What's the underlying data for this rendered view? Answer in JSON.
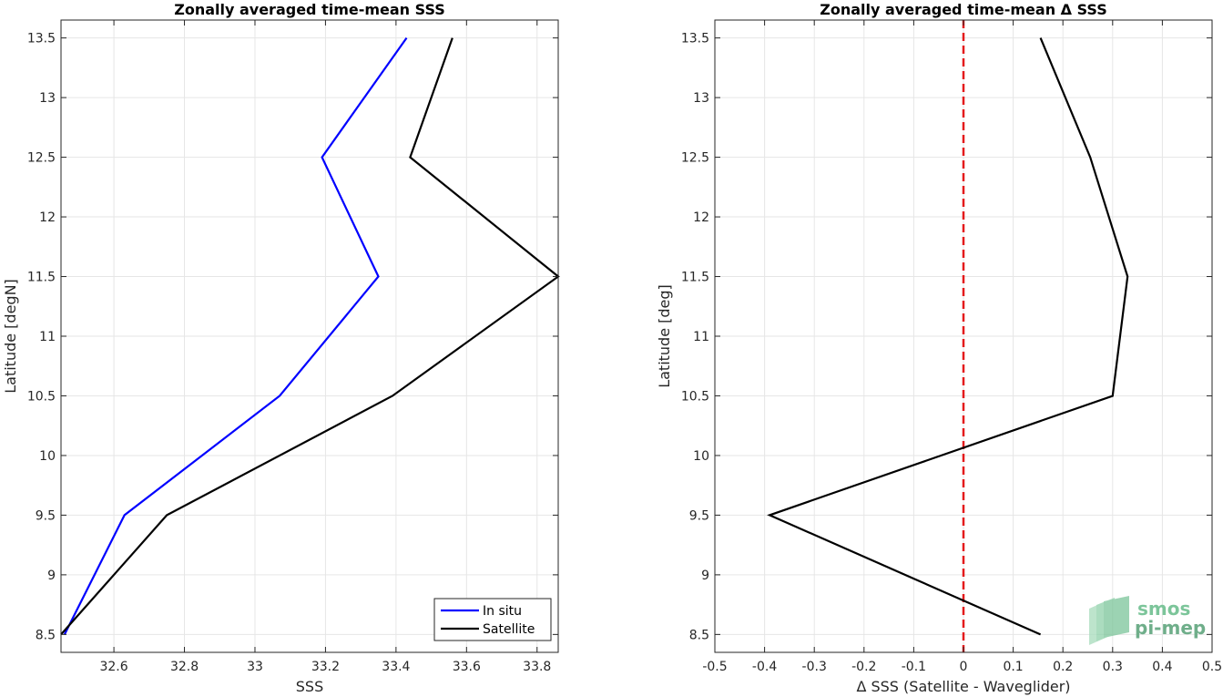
{
  "chart_data": [
    {
      "type": "line",
      "title": "Zonally averaged time-mean SSS",
      "xlabel": "SSS",
      "ylabel": "Latitude [degN]",
      "xlim": [
        32.45,
        33.86
      ],
      "ylim": [
        8.35,
        13.65
      ],
      "xticks": [
        32.6,
        32.8,
        33,
        33.2,
        33.4,
        33.6,
        33.8
      ],
      "xtick_labels": [
        "32.6",
        "32.8",
        "33",
        "33.2",
        "33.4",
        "33.6",
        "33.8"
      ],
      "yticks": [
        8.5,
        9,
        9.5,
        10,
        10.5,
        11,
        11.5,
        12,
        12.5,
        13,
        13.5
      ],
      "ytick_labels": [
        "8.5",
        "9",
        "9.5",
        "10",
        "10.5",
        "11",
        "11.5",
        "12",
        "12.5",
        "13",
        "13.5"
      ],
      "grid": true,
      "legend": "bottom-right",
      "series": [
        {
          "name": "In situ",
          "color": "#0000ff",
          "x": [
            32.46,
            32.63,
            33.07,
            33.35,
            33.19,
            33.43
          ],
          "y": [
            8.5,
            9.5,
            10.5,
            11.5,
            12.5,
            13.5
          ]
        },
        {
          "name": "Satellite",
          "color": "#000000",
          "x": [
            32.45,
            32.75,
            33.39,
            33.86,
            33.44,
            33.56
          ],
          "y": [
            8.5,
            9.5,
            10.5,
            11.5,
            12.5,
            13.5
          ]
        }
      ]
    },
    {
      "type": "line",
      "title": "Zonally averaged time-mean Δ SSS",
      "xlabel": "Δ SSS (Satellite - Waveglider)",
      "ylabel": "Latitude [deg]",
      "xlim": [
        -0.5,
        0.5
      ],
      "ylim": [
        8.35,
        13.65
      ],
      "xticks": [
        -0.5,
        -0.4,
        -0.3,
        -0.2,
        -0.1,
        0,
        0.1,
        0.2,
        0.3,
        0.4,
        0.5
      ],
      "xtick_labels": [
        "-0.5",
        "-0.4",
        "-0.3",
        "-0.2",
        "-0.1",
        "0",
        "0.1",
        "0.2",
        "0.3",
        "0.4",
        "0.5"
      ],
      "yticks": [
        8.5,
        9,
        9.5,
        10,
        10.5,
        11,
        11.5,
        12,
        12.5,
        13,
        13.5
      ],
      "ytick_labels": [
        "8.5",
        "9",
        "9.5",
        "10",
        "10.5",
        "11",
        "11.5",
        "12",
        "12.5",
        "13",
        "13.5"
      ],
      "grid": true,
      "reference_line": {
        "x": 0,
        "color": "#e41a1c",
        "style": "dashed"
      },
      "series": [
        {
          "color": "#000000",
          "x": [
            0.155,
            -0.39,
            0.3,
            0.33,
            0.255,
            0.155
          ],
          "y": [
            8.5,
            9.5,
            10.5,
            11.5,
            12.5,
            13.5
          ]
        }
      ]
    }
  ],
  "logo": {
    "line1": "smos",
    "line2": "pi-mep",
    "color": "#7cc59a"
  }
}
